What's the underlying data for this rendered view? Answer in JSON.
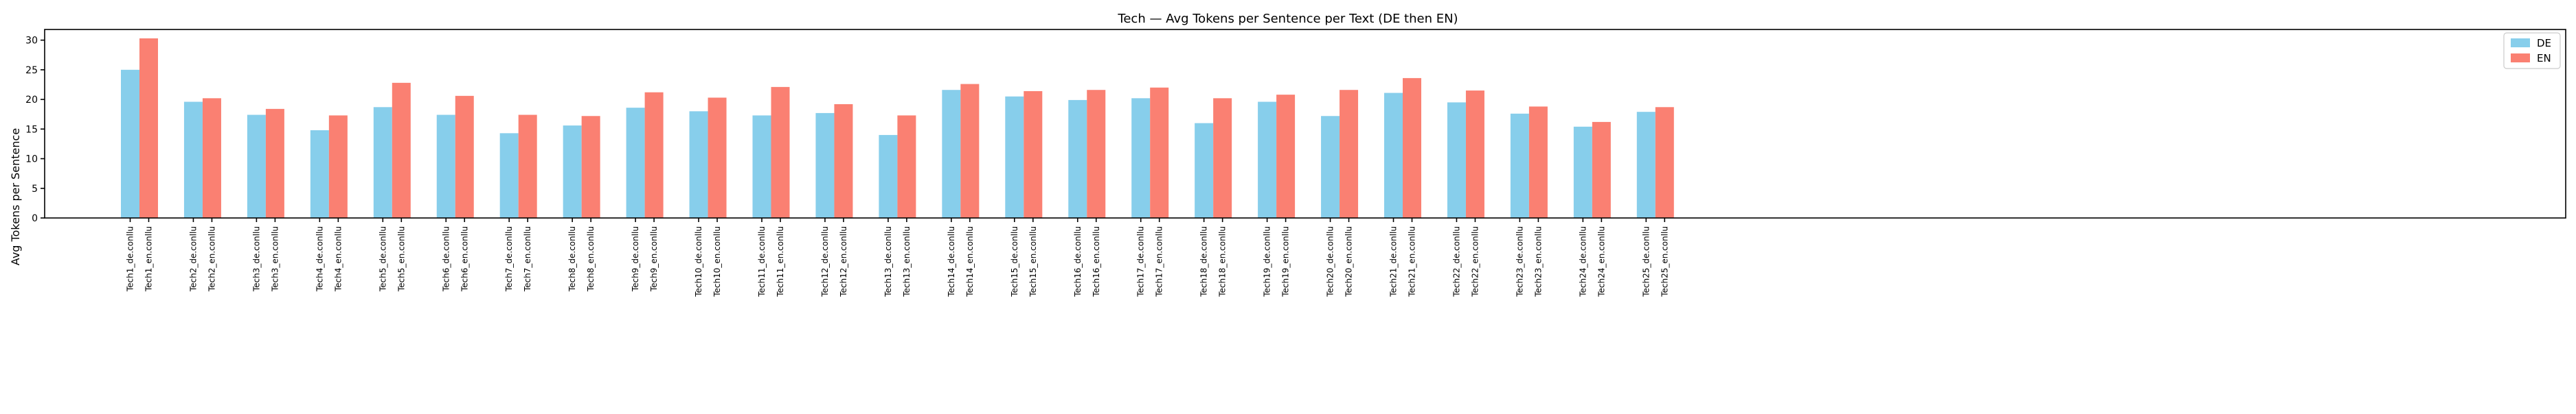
{
  "chart_data": {
    "type": "bar",
    "title": "Tech — Avg Tokens per Sentence per Text (DE then EN)",
    "xlabel": "",
    "ylabel": "Avg Tokens per Sentence",
    "ylim": [
      0,
      31.8
    ],
    "yticks": [
      0,
      5,
      10,
      15,
      20,
      25,
      30
    ],
    "grid": false,
    "legend_position": "top-right",
    "texts": [
      "Tech1",
      "Tech2",
      "Tech3",
      "Tech4",
      "Tech5",
      "Tech6",
      "Tech7",
      "Tech8",
      "Tech9",
      "Tech10",
      "Tech11",
      "Tech12",
      "Tech13",
      "Tech14",
      "Tech15",
      "Tech16",
      "Tech17",
      "Tech18",
      "Tech19",
      "Tech20",
      "Tech21",
      "Tech22",
      "Tech23",
      "Tech24",
      "Tech25"
    ],
    "tick_labels": [
      "Tech1_de.conllu",
      "Tech1_en.conllu",
      "Tech2_de.conllu",
      "Tech2_en.conllu",
      "Tech3_de.conllu",
      "Tech3_en.conllu",
      "Tech4_de.conllu",
      "Tech4_en.conllu",
      "Tech5_de.conllu",
      "Tech5_en.conllu",
      "Tech6_de.conllu",
      "Tech6_en.conllu",
      "Tech7_de.conllu",
      "Tech7_en.conllu",
      "Tech8_de.conllu",
      "Tech8_en.conllu",
      "Tech9_de.conllu",
      "Tech9_en.conllu",
      "Tech10_de.conllu",
      "Tech10_en.conllu",
      "Tech11_de.conllu",
      "Tech11_en.conllu",
      "Tech12_de.conllu",
      "Tech12_en.conllu",
      "Tech13_de.conllu",
      "Tech13_en.conllu",
      "Tech14_de.conllu",
      "Tech14_en.conllu",
      "Tech15_de.conllu",
      "Tech15_en.conllu",
      "Tech16_de.conllu",
      "Tech16_en.conllu",
      "Tech17_de.conllu",
      "Tech17_en.conllu",
      "Tech18_de.conllu",
      "Tech18_en.conllu",
      "Tech19_de.conllu",
      "Tech19_en.conllu",
      "Tech20_de.conllu",
      "Tech20_en.conllu",
      "Tech21_de.conllu",
      "Tech21_en.conllu",
      "Tech22_de.conllu",
      "Tech22_en.conllu",
      "Tech23_de.conllu",
      "Tech23_en.conllu",
      "Tech24_de.conllu",
      "Tech24_en.conllu",
      "Tech25_de.conllu",
      "Tech25_en.conllu"
    ],
    "series": [
      {
        "name": "DE",
        "color": "#87CEEB",
        "values": [
          25.0,
          19.6,
          17.4,
          14.8,
          18.7,
          17.4,
          14.3,
          15.6,
          18.6,
          18.0,
          17.3,
          17.7,
          14.0,
          21.6,
          20.5,
          19.9,
          20.2,
          16.0,
          19.6,
          17.2,
          21.1,
          19.5,
          17.6,
          15.4,
          17.9
        ]
      },
      {
        "name": "EN",
        "color": "#FA8072",
        "values": [
          30.3,
          20.2,
          18.4,
          17.3,
          22.8,
          20.6,
          17.4,
          17.2,
          21.2,
          20.3,
          22.1,
          19.2,
          17.3,
          22.6,
          21.4,
          21.6,
          22.0,
          20.2,
          20.8,
          21.6,
          23.6,
          21.5,
          18.8,
          16.2,
          18.7
        ]
      }
    ]
  }
}
